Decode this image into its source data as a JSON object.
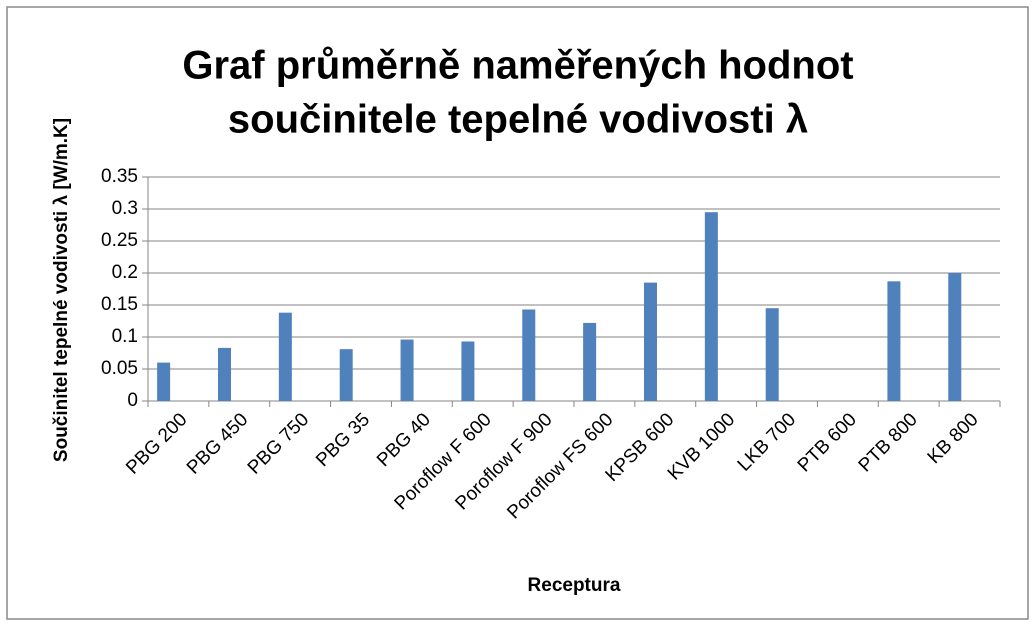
{
  "chart_data": {
    "type": "bar",
    "title": [
      "Graf průměrně naměřených hodnot",
      "součinitele tepelné vodivosti λ"
    ],
    "y_axis_label": "Součinitel tepelné vodivosti λ [W/m.K]",
    "x_axis_label": "Receptura",
    "categories": [
      "PBG 200",
      "PBG 450",
      "PBG 750",
      "PBG 35",
      "PBG 40",
      "Poroflow F 600",
      "Poroflow F 900",
      "Poroflow FS 600",
      "KPSB 600",
      "KVB 1000",
      "LKB 700",
      "PTB 600",
      "PTB 800",
      "KB 800"
    ],
    "values": [
      0.06,
      0.083,
      0.138,
      0.081,
      0.096,
      0.093,
      0.143,
      0.122,
      0.185,
      0.295,
      0.145,
      null,
      0.187,
      0.2
    ],
    "color": "#4f81bd",
    "ylim": [
      0,
      0.35
    ],
    "yticks": [
      0,
      0.05,
      0.1,
      0.15,
      0.2,
      0.25,
      0.3,
      0.35
    ],
    "grid": true
  }
}
